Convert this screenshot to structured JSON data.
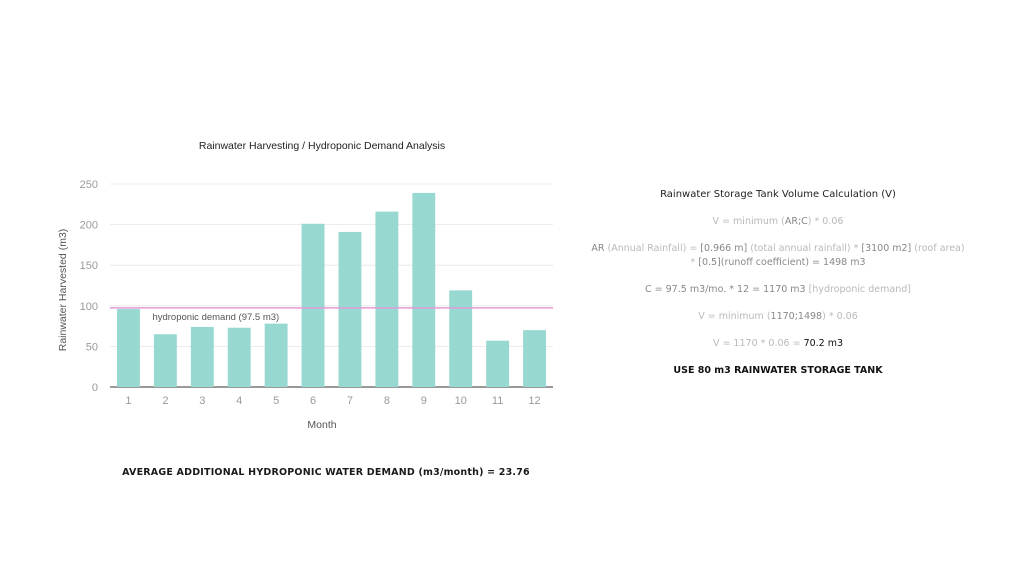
{
  "chart_data": {
    "type": "bar",
    "title": "Rainwater Harvesting / Hydroponic Demand Analysis",
    "xlabel": "Month",
    "ylabel": "Rainwater Harvested (m3)",
    "categories": [
      "1",
      "2",
      "3",
      "4",
      "5",
      "6",
      "7",
      "8",
      "9",
      "10",
      "11",
      "12"
    ],
    "values": [
      96,
      65,
      74,
      73,
      78,
      201,
      191,
      216,
      239,
      119,
      57,
      70
    ],
    "ylim": [
      0,
      250
    ],
    "yticks": [
      "0",
      "50",
      "100",
      "150",
      "200",
      "250"
    ],
    "grid": true,
    "bar_color": "#97d8d1",
    "reference_line": {
      "value": 97.5,
      "label": "hydroponic demand (97.5 m3)",
      "color": "#e49ad6"
    }
  },
  "footer_note": "AVERAGE ADDITIONAL HYDROPONIC WATER DEMAND (m3/month) = 23.76",
  "calculation": {
    "title": "Rainwater Storage Tank Volume Calculation (V)",
    "formula": {
      "pre": "V = minimum (",
      "arc": "AR;C",
      "post": ") * 0.06"
    },
    "ar": {
      "p1": "AR",
      "p2": " (Annual Rainfall) = ",
      "p3": "[0.966 m]",
      "p4": " (total annual rainfall) * ",
      "p5": "[3100 m2]",
      "p6": " (roof area)",
      "p7": " * ",
      "p8": "[0.5]",
      "p9": "(runoff coefficient) = ",
      "p10": "1498 m3"
    },
    "c": {
      "p1": "C = ",
      "p2": "97.5 m3/mo. * 12 = 1170 m3",
      "p3": " [hydroponic demand]"
    },
    "v_min": {
      "pre": "V = minimum (",
      "vals": "1170;1498",
      "post": ") * 0.06"
    },
    "v_result": {
      "pre": "V = 1170 * 0.06 = ",
      "result": "70.2 m3"
    },
    "recommendation": "USE 80 m3 RAINWATER STORAGE TANK"
  }
}
